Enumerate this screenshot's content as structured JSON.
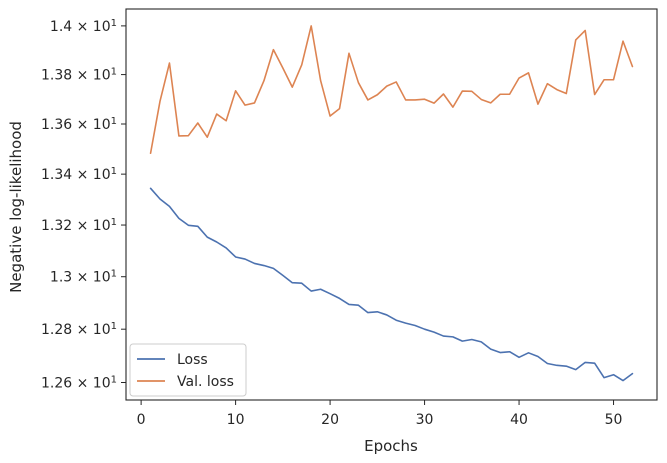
{
  "chart_data": {
    "type": "line",
    "xlabel": "Epochs",
    "ylabel": "Negative log-likelihood",
    "xlim": [
      -1.6,
      54.6
    ],
    "ylim": [
      12.535,
      14.07
    ],
    "y_scale": "log",
    "x_ticks": [
      0,
      10,
      20,
      30,
      40,
      50
    ],
    "x_tick_labels": [
      "0",
      "10",
      "20",
      "30",
      "40",
      "50"
    ],
    "y_ticks": [
      12.6,
      12.8,
      13.0,
      13.2,
      13.4,
      13.6,
      13.8,
      14.0
    ],
    "y_tick_labels": [
      {
        "mantissa": "1.26",
        "base": "10",
        "exp": "1"
      },
      {
        "mantissa": "1.28",
        "base": "10",
        "exp": "1"
      },
      {
        "mantissa": "1.3",
        "base": "10",
        "exp": "1"
      },
      {
        "mantissa": "1.32",
        "base": "10",
        "exp": "1"
      },
      {
        "mantissa": "1.34",
        "base": "10",
        "exp": "1"
      },
      {
        "mantissa": "1.36",
        "base": "10",
        "exp": "1"
      },
      {
        "mantissa": "1.38",
        "base": "10",
        "exp": "1"
      },
      {
        "mantissa": "1.4",
        "base": "10",
        "exp": "1"
      }
    ],
    "y_tick_times": "×",
    "grid": false,
    "legend_position": "lower-left",
    "x": [
      1,
      2,
      3,
      4,
      5,
      6,
      7,
      8,
      9,
      10,
      11,
      12,
      13,
      14,
      15,
      16,
      17,
      18,
      19,
      20,
      21,
      22,
      23,
      24,
      25,
      26,
      27,
      28,
      29,
      30,
      31,
      32,
      33,
      34,
      35,
      36,
      37,
      38,
      39,
      40,
      41,
      42,
      43,
      44,
      45,
      46,
      47,
      48,
      49,
      50,
      51,
      52
    ],
    "series": [
      {
        "name": "Loss",
        "color": "#4c72b0",
        "values": [
          13.344,
          13.302,
          13.273,
          13.226,
          13.199,
          13.195,
          13.153,
          13.134,
          13.111,
          13.076,
          13.068,
          13.051,
          13.043,
          13.032,
          13.005,
          12.977,
          12.975,
          12.945,
          12.952,
          12.935,
          12.917,
          12.894,
          12.891,
          12.863,
          12.866,
          12.854,
          12.834,
          12.823,
          12.814,
          12.8,
          12.789,
          12.774,
          12.771,
          12.755,
          12.761,
          12.752,
          12.725,
          12.712,
          12.715,
          12.694,
          12.711,
          12.697,
          12.671,
          12.664,
          12.661,
          12.648,
          12.675,
          12.672,
          12.618,
          12.629,
          12.607,
          12.633
        ]
      },
      {
        "name": "Val. loss",
        "color": "#dd8452",
        "values": [
          13.483,
          13.692,
          13.847,
          13.552,
          13.553,
          13.604,
          13.547,
          13.64,
          13.613,
          13.734,
          13.676,
          13.685,
          13.775,
          13.902,
          13.827,
          13.749,
          13.84,
          14.0,
          13.775,
          13.632,
          13.662,
          13.887,
          13.767,
          13.697,
          13.718,
          13.753,
          13.77,
          13.697,
          13.697,
          13.7,
          13.684,
          13.721,
          13.668,
          13.733,
          13.732,
          13.699,
          13.685,
          13.72,
          13.72,
          13.786,
          13.807,
          13.68,
          13.763,
          13.739,
          13.723,
          13.942,
          13.981,
          13.719,
          13.779,
          13.779,
          13.937,
          13.833
        ]
      }
    ]
  }
}
